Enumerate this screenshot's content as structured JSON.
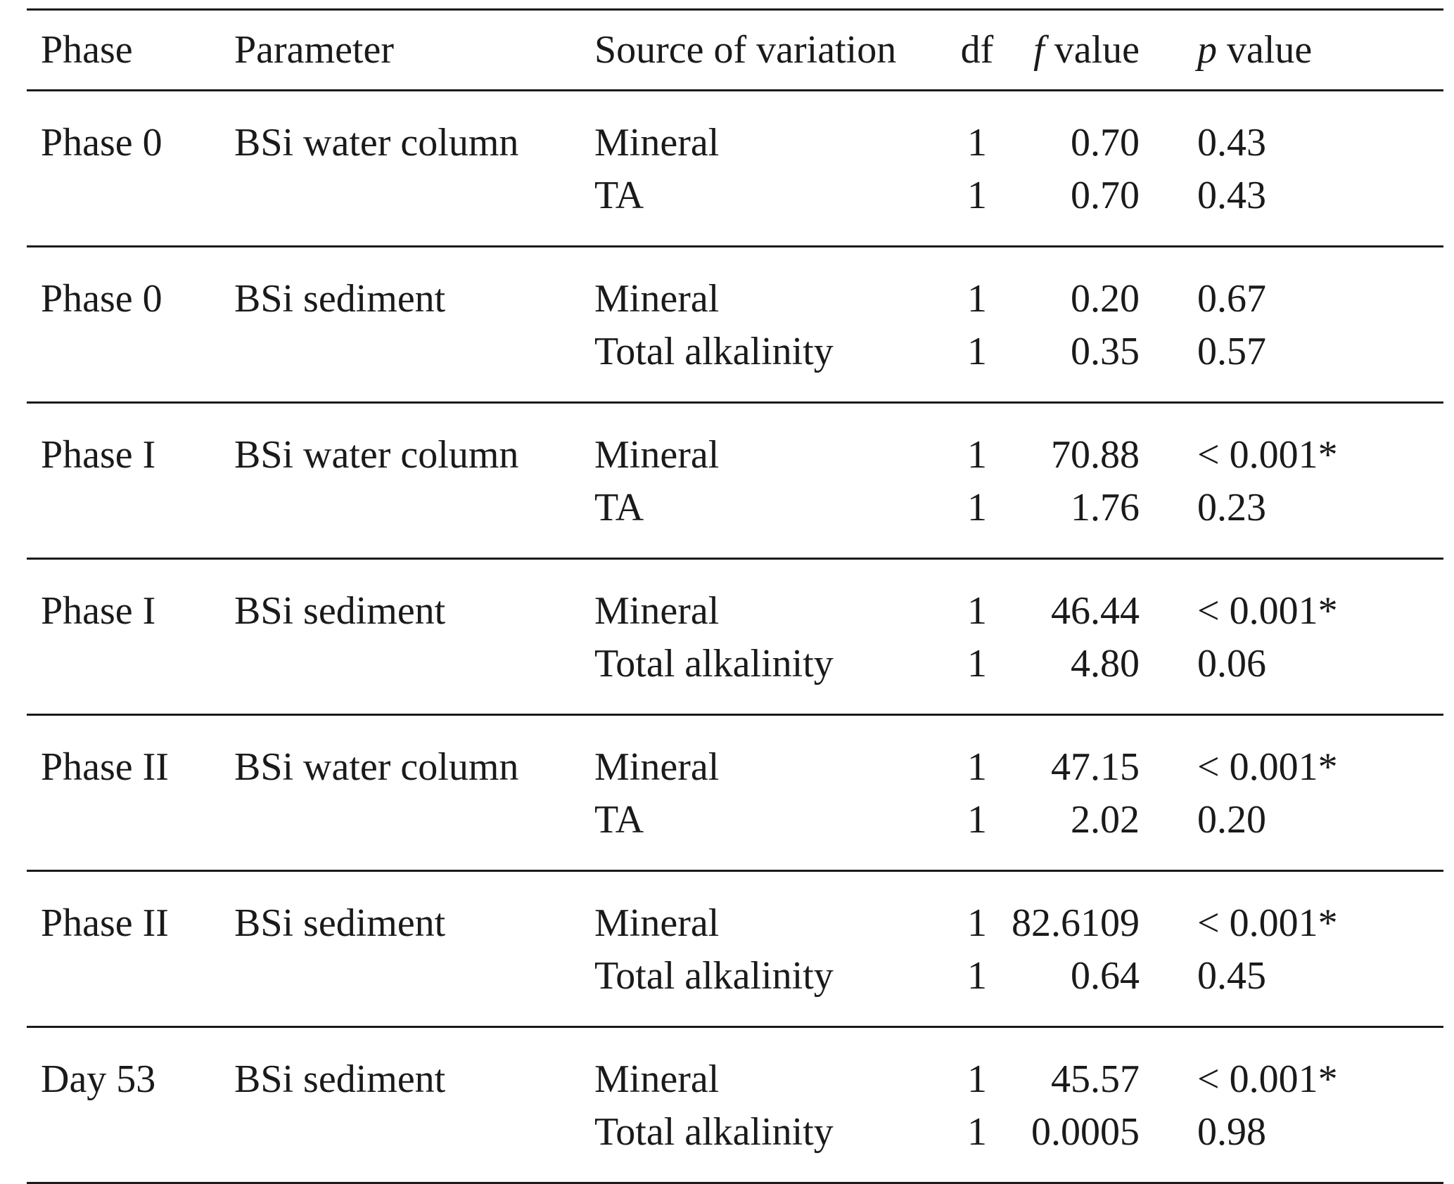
{
  "headers": {
    "phase": "Phase",
    "parameter": "Parameter",
    "source": "Source of variation",
    "df": "df",
    "f_symbol": "f",
    "f_suffix": "value",
    "p_symbol": "p",
    "p_suffix": "value"
  },
  "groups": [
    {
      "phase": "Phase 0",
      "parameter": "BSi water column",
      "rows": [
        {
          "source": "Mineral",
          "df": "1",
          "f": "0.70",
          "p": "0.43"
        },
        {
          "source": "TA",
          "df": "1",
          "f": "0.70",
          "p": "0.43"
        }
      ]
    },
    {
      "phase": "Phase 0",
      "parameter": "BSi sediment",
      "rows": [
        {
          "source": "Mineral",
          "df": "1",
          "f": "0.20",
          "p": "0.67"
        },
        {
          "source": "Total alkalinity",
          "df": "1",
          "f": "0.35",
          "p": "0.57"
        }
      ]
    },
    {
      "phase": "Phase I",
      "parameter": "BSi water column",
      "rows": [
        {
          "source": "Mineral",
          "df": "1",
          "f": "70.88",
          "p": "< 0.001*"
        },
        {
          "source": "TA",
          "df": "1",
          "f": "1.76",
          "p": "0.23"
        }
      ]
    },
    {
      "phase": "Phase I",
      "parameter": "BSi sediment",
      "rows": [
        {
          "source": "Mineral",
          "df": "1",
          "f": "46.44",
          "p": "< 0.001*"
        },
        {
          "source": "Total alkalinity",
          "df": "1",
          "f": "4.80",
          "p": "0.06"
        }
      ]
    },
    {
      "phase": "Phase II",
      "parameter": "BSi water column",
      "rows": [
        {
          "source": "Mineral",
          "df": "1",
          "f": "47.15",
          "p": "< 0.001*"
        },
        {
          "source": "TA",
          "df": "1",
          "f": "2.02",
          "p": "0.20"
        }
      ]
    },
    {
      "phase": "Phase II",
      "parameter": "BSi sediment",
      "rows": [
        {
          "source": "Mineral",
          "df": "1",
          "f": "82.6109",
          "p": "< 0.001*"
        },
        {
          "source": "Total alkalinity",
          "df": "1",
          "f": "0.64",
          "p": "0.45"
        }
      ]
    },
    {
      "phase": "Day 53",
      "parameter": "BSi sediment",
      "rows": [
        {
          "source": "Mineral",
          "df": "1",
          "f": "45.57",
          "p": "< 0.001*"
        },
        {
          "source": "Total alkalinity",
          "df": "1",
          "f": "0.0005",
          "p": "0.98"
        }
      ]
    }
  ]
}
